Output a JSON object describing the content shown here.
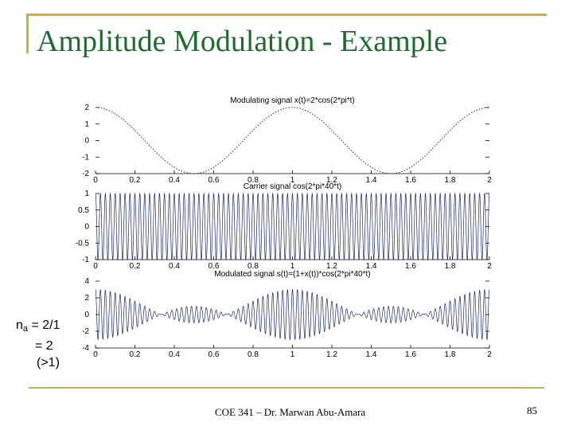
{
  "slide": {
    "title": "Amplitude Modulation - Example",
    "footer": "COE 341 – Dr. Marwan Abu-Amara",
    "page_number": "85",
    "side_note": {
      "line1_prefix": "n",
      "line1_sub": "a",
      "line1_suffix": " = 2/1",
      "line2": "= 2",
      "line3": "(>1)"
    },
    "accent_color": "#c9b43a",
    "title_color": "#1e6b2f"
  },
  "chart_data": [
    {
      "type": "line",
      "title": "Modulating signal x(t)=2*cos(2*pi*t)",
      "xlim": [
        0,
        2
      ],
      "ylim": [
        -2,
        2
      ],
      "xticks": [
        "0",
        "0.2",
        "0.4",
        "0.6",
        "0.8",
        "1",
        "1.2",
        "1.4",
        "1.6",
        "1.8",
        "2"
      ],
      "yticks": [
        "2",
        "1",
        "0",
        "-1",
        "-2"
      ],
      "function": "2*cos(2*pi*t)"
    },
    {
      "type": "line",
      "title": "Carrier signal cos(2*pi*40*t)",
      "xlim": [
        0,
        2
      ],
      "ylim": [
        -1,
        1
      ],
      "xticks": [
        "0",
        "0.2",
        "0.4",
        "0.6",
        "0.8",
        "1",
        "1.2",
        "1.4",
        "1.6",
        "1.8",
        "2"
      ],
      "yticks": [
        "1",
        "0.5",
        "0",
        "-0.5",
        "-1"
      ],
      "function": "cos(2*pi*40*t)"
    },
    {
      "type": "line",
      "title": "Modulated signal s(t)=(1+x(t))*cos(2*pi*40*t)",
      "xlim": [
        0,
        2
      ],
      "ylim": [
        -4,
        4
      ],
      "xticks": [
        "0",
        "0.2",
        "0.4",
        "0.6",
        "0.8",
        "1",
        "1.2",
        "1.4",
        "1.6",
        "1.8",
        "2"
      ],
      "yticks": [
        "4",
        "2",
        "0",
        "-2",
        "-4"
      ],
      "function": "(1+2*cos(2*pi*t))*cos(2*pi*40*t)"
    }
  ]
}
